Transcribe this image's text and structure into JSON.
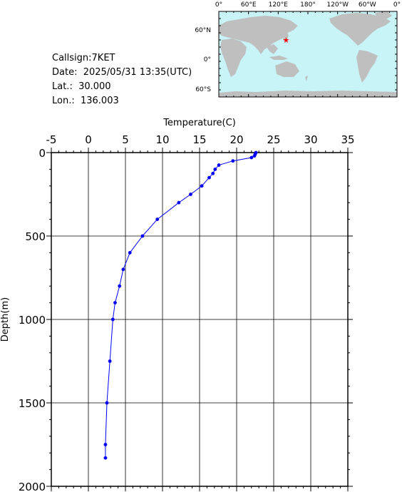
{
  "info": {
    "callsign": "Callsign:7KET",
    "date": "Date:  2025/05/31 13:35(UTC)",
    "lat": "Lat.:  30.000",
    "lon": "Lon.:  136.003"
  },
  "map": {
    "ocean_color": "#c8f4f8",
    "land_color": "#bfbfbf",
    "marker_color": "#ff0000",
    "marker_icon": "star-icon",
    "marker_lat": 30.0,
    "marker_lon": 136.003,
    "top_labels": [
      "0°",
      "60°E",
      "120°E",
      "180°",
      "120°W",
      "60°W",
      "0°"
    ],
    "left_labels": [
      "60°N",
      "0°",
      "60°S"
    ]
  },
  "chart_data": {
    "type": "line",
    "xlabel": "Temperature(C)",
    "ylabel": "Depth(m)",
    "xlim": [
      -5,
      35
    ],
    "ylim": [
      2000,
      0
    ],
    "x_ticks": [
      "-5",
      "0",
      "5",
      "10",
      "15",
      "20",
      "25",
      "30",
      "35"
    ],
    "y_ticks": [
      "0",
      "500",
      "1000",
      "1500",
      "2000"
    ],
    "grid": true,
    "line_color": "#0000ff",
    "series": [
      {
        "points": [
          {
            "temp": 22.6,
            "depth": 0
          },
          {
            "temp": 22.5,
            "depth": 10
          },
          {
            "temp": 22.4,
            "depth": 20
          },
          {
            "temp": 22.0,
            "depth": 30
          },
          {
            "temp": 19.5,
            "depth": 50
          },
          {
            "temp": 17.6,
            "depth": 75
          },
          {
            "temp": 17.1,
            "depth": 100
          },
          {
            "temp": 16.8,
            "depth": 125
          },
          {
            "temp": 16.3,
            "depth": 150
          },
          {
            "temp": 15.3,
            "depth": 200
          },
          {
            "temp": 13.8,
            "depth": 250
          },
          {
            "temp": 12.2,
            "depth": 300
          },
          {
            "temp": 9.3,
            "depth": 400
          },
          {
            "temp": 7.3,
            "depth": 500
          },
          {
            "temp": 5.6,
            "depth": 600
          },
          {
            "temp": 4.7,
            "depth": 700
          },
          {
            "temp": 4.2,
            "depth": 800
          },
          {
            "temp": 3.6,
            "depth": 900
          },
          {
            "temp": 3.3,
            "depth": 1000
          },
          {
            "temp": 2.9,
            "depth": 1250
          },
          {
            "temp": 2.5,
            "depth": 1500
          },
          {
            "temp": 2.3,
            "depth": 1750
          },
          {
            "temp": 2.3,
            "depth": 1830
          }
        ]
      }
    ]
  }
}
